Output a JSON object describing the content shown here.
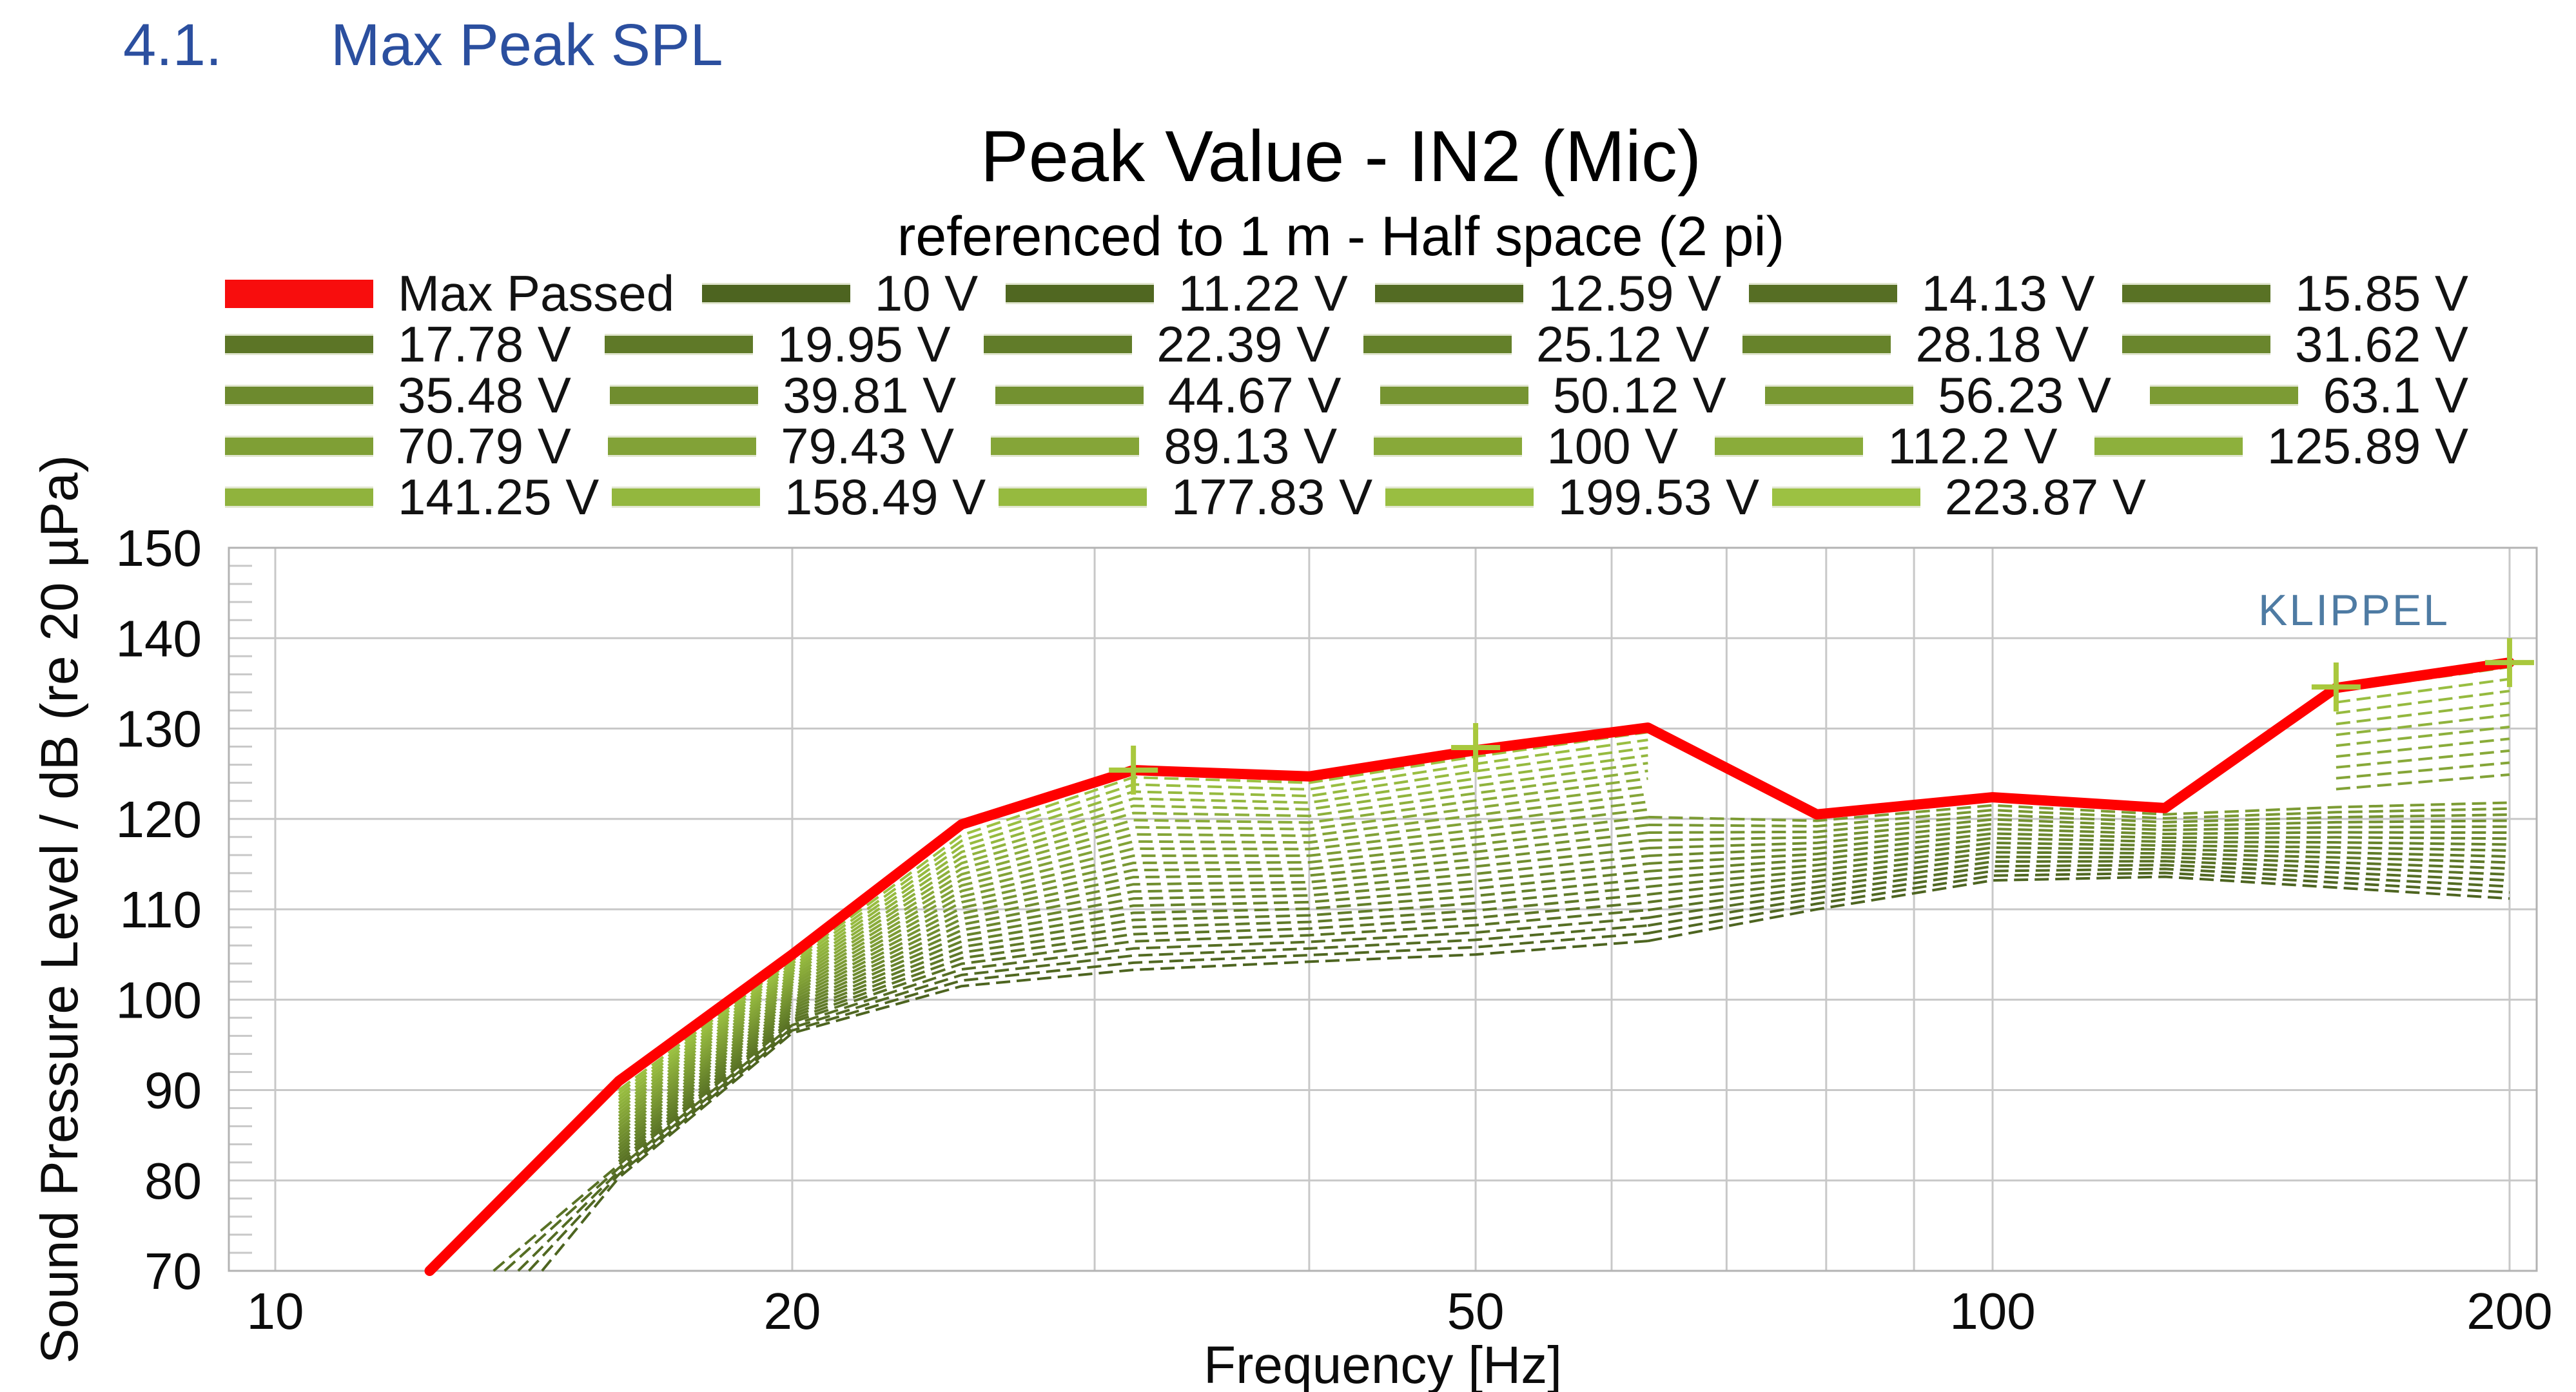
{
  "heading": {
    "number": "4.1.",
    "text": "Max Peak SPL",
    "color": "#2b4f9f"
  },
  "chart": {
    "title": "Peak Value - IN2 (Mic)",
    "subtitle": "referenced to 1 m - Half space (2 pi)",
    "watermark": "KLIPPEL",
    "watermark_color": "#4e7ba3",
    "xlabel": "Frequency [Hz]",
    "ylabel": "Sound Pressure Level / dB (re 20 µPa)"
  },
  "legend": {
    "max_passed_label": "Max Passed",
    "max_passed_color": "#f80d0d",
    "labels": [
      "10 V",
      "11.22 V",
      "12.59 V",
      "14.13 V",
      "15.85 V",
      "17.78 V",
      "19.95 V",
      "22.39 V",
      "25.12 V",
      "28.18 V",
      "31.62 V",
      "35.48 V",
      "39.81 V",
      "44.67 V",
      "50.12 V",
      "56.23 V",
      "63.1 V",
      "70.79 V",
      "79.43 V",
      "89.13 V",
      "100 V",
      "112.2 V",
      "125.89 V",
      "141.25 V",
      "158.49 V",
      "177.83 V",
      "199.53 V",
      "223.87 V"
    ],
    "row_counts": [
      5,
      6,
      6,
      6,
      5
    ],
    "color_dark": "#4d6420",
    "color_light": "#9cc142"
  },
  "chart_data": {
    "type": "line",
    "title": "Peak Value - IN2 (Mic)",
    "subtitle": "referenced to 1 m - Half space (2 pi)",
    "xlabel": "Frequency [Hz]",
    "ylabel": "Sound Pressure Level / dB (re 20 µPa)",
    "axes": {
      "x": {
        "type": "log",
        "min": 9.4,
        "max": 207.5,
        "gridlines": [
          10,
          20,
          30,
          40,
          50,
          60,
          70,
          80,
          90,
          100,
          200
        ],
        "labeled_ticks": [
          10,
          20,
          50,
          100,
          200
        ]
      },
      "y": {
        "min": 70,
        "max": 150,
        "major_step": 10,
        "minor_step": 2,
        "grid": true
      }
    },
    "grid_color": "#c8c8c8",
    "border_color": "#b3b3b3",
    "max_passed": {
      "name": "Max Passed",
      "color": "#ff0000",
      "points": [
        [
          12.3,
          70
        ],
        [
          15.85,
          91
        ],
        [
          20,
          105
        ],
        [
          25.1,
          119.4
        ],
        [
          31.6,
          125.4
        ],
        [
          40,
          124.7
        ],
        [
          50,
          127.6
        ],
        [
          63,
          130.1
        ],
        [
          79,
          120.5
        ],
        [
          100,
          122.4
        ],
        [
          126,
          121.2
        ],
        [
          158.5,
          134.5
        ],
        [
          200,
          137.3
        ]
      ],
      "markers": [
        [
          31.6,
          125.4
        ],
        [
          50,
          127.9
        ],
        [
          158.5,
          134.6
        ],
        [
          200,
          137.3
        ]
      ],
      "marker_color": "#a9c83d"
    },
    "voltage_family": {
      "comment": "28 sweep curves, one per drive voltage, 1 dB voltage steps; curve i interpolates between base (10 V) and top (223.87 V) shapes",
      "voltages": [
        10,
        11.22,
        12.59,
        14.13,
        15.85,
        17.78,
        19.95,
        22.39,
        25.12,
        28.18,
        31.62,
        35.48,
        39.81,
        44.67,
        50.12,
        56.23,
        63.1,
        70.79,
        79.43,
        89.13,
        100,
        112.2,
        125.89,
        141.25,
        158.49,
        177.83,
        199.53,
        223.87
      ],
      "freqs_main": [
        15.85,
        20,
        25.1,
        31.6,
        40,
        50,
        63
      ],
      "base_main": [
        80.3,
        96.3,
        101.5,
        103.3,
        104.2,
        105.0,
        106.5
      ],
      "top_main": [
        90.0,
        104.3,
        118.2,
        124.6,
        124.0,
        126.9,
        129.6
      ],
      "left_tail_starts": [
        [
          14.3,
          70
        ],
        [
          14.05,
          70
        ],
        [
          13.85,
          70
        ],
        [
          13.6,
          70
        ],
        [
          13.4,
          70
        ]
      ],
      "band_count": 17,
      "freqs_right": [
        63,
        79,
        100,
        126,
        158.5,
        200
      ],
      "base_right": [
        106.5,
        110.0,
        113.2,
        113.6,
        112.4,
        111.2
      ],
      "bandtop_right": [
        120.2,
        119.8,
        121.5,
        120.5,
        121.3,
        121.8
      ],
      "upper_start_index": 18,
      "freqs_upper": [
        158.5,
        200
      ],
      "upper_bottom": [
        123.3,
        124.9
      ],
      "upper_top": [
        134.1,
        136.8
      ]
    }
  }
}
